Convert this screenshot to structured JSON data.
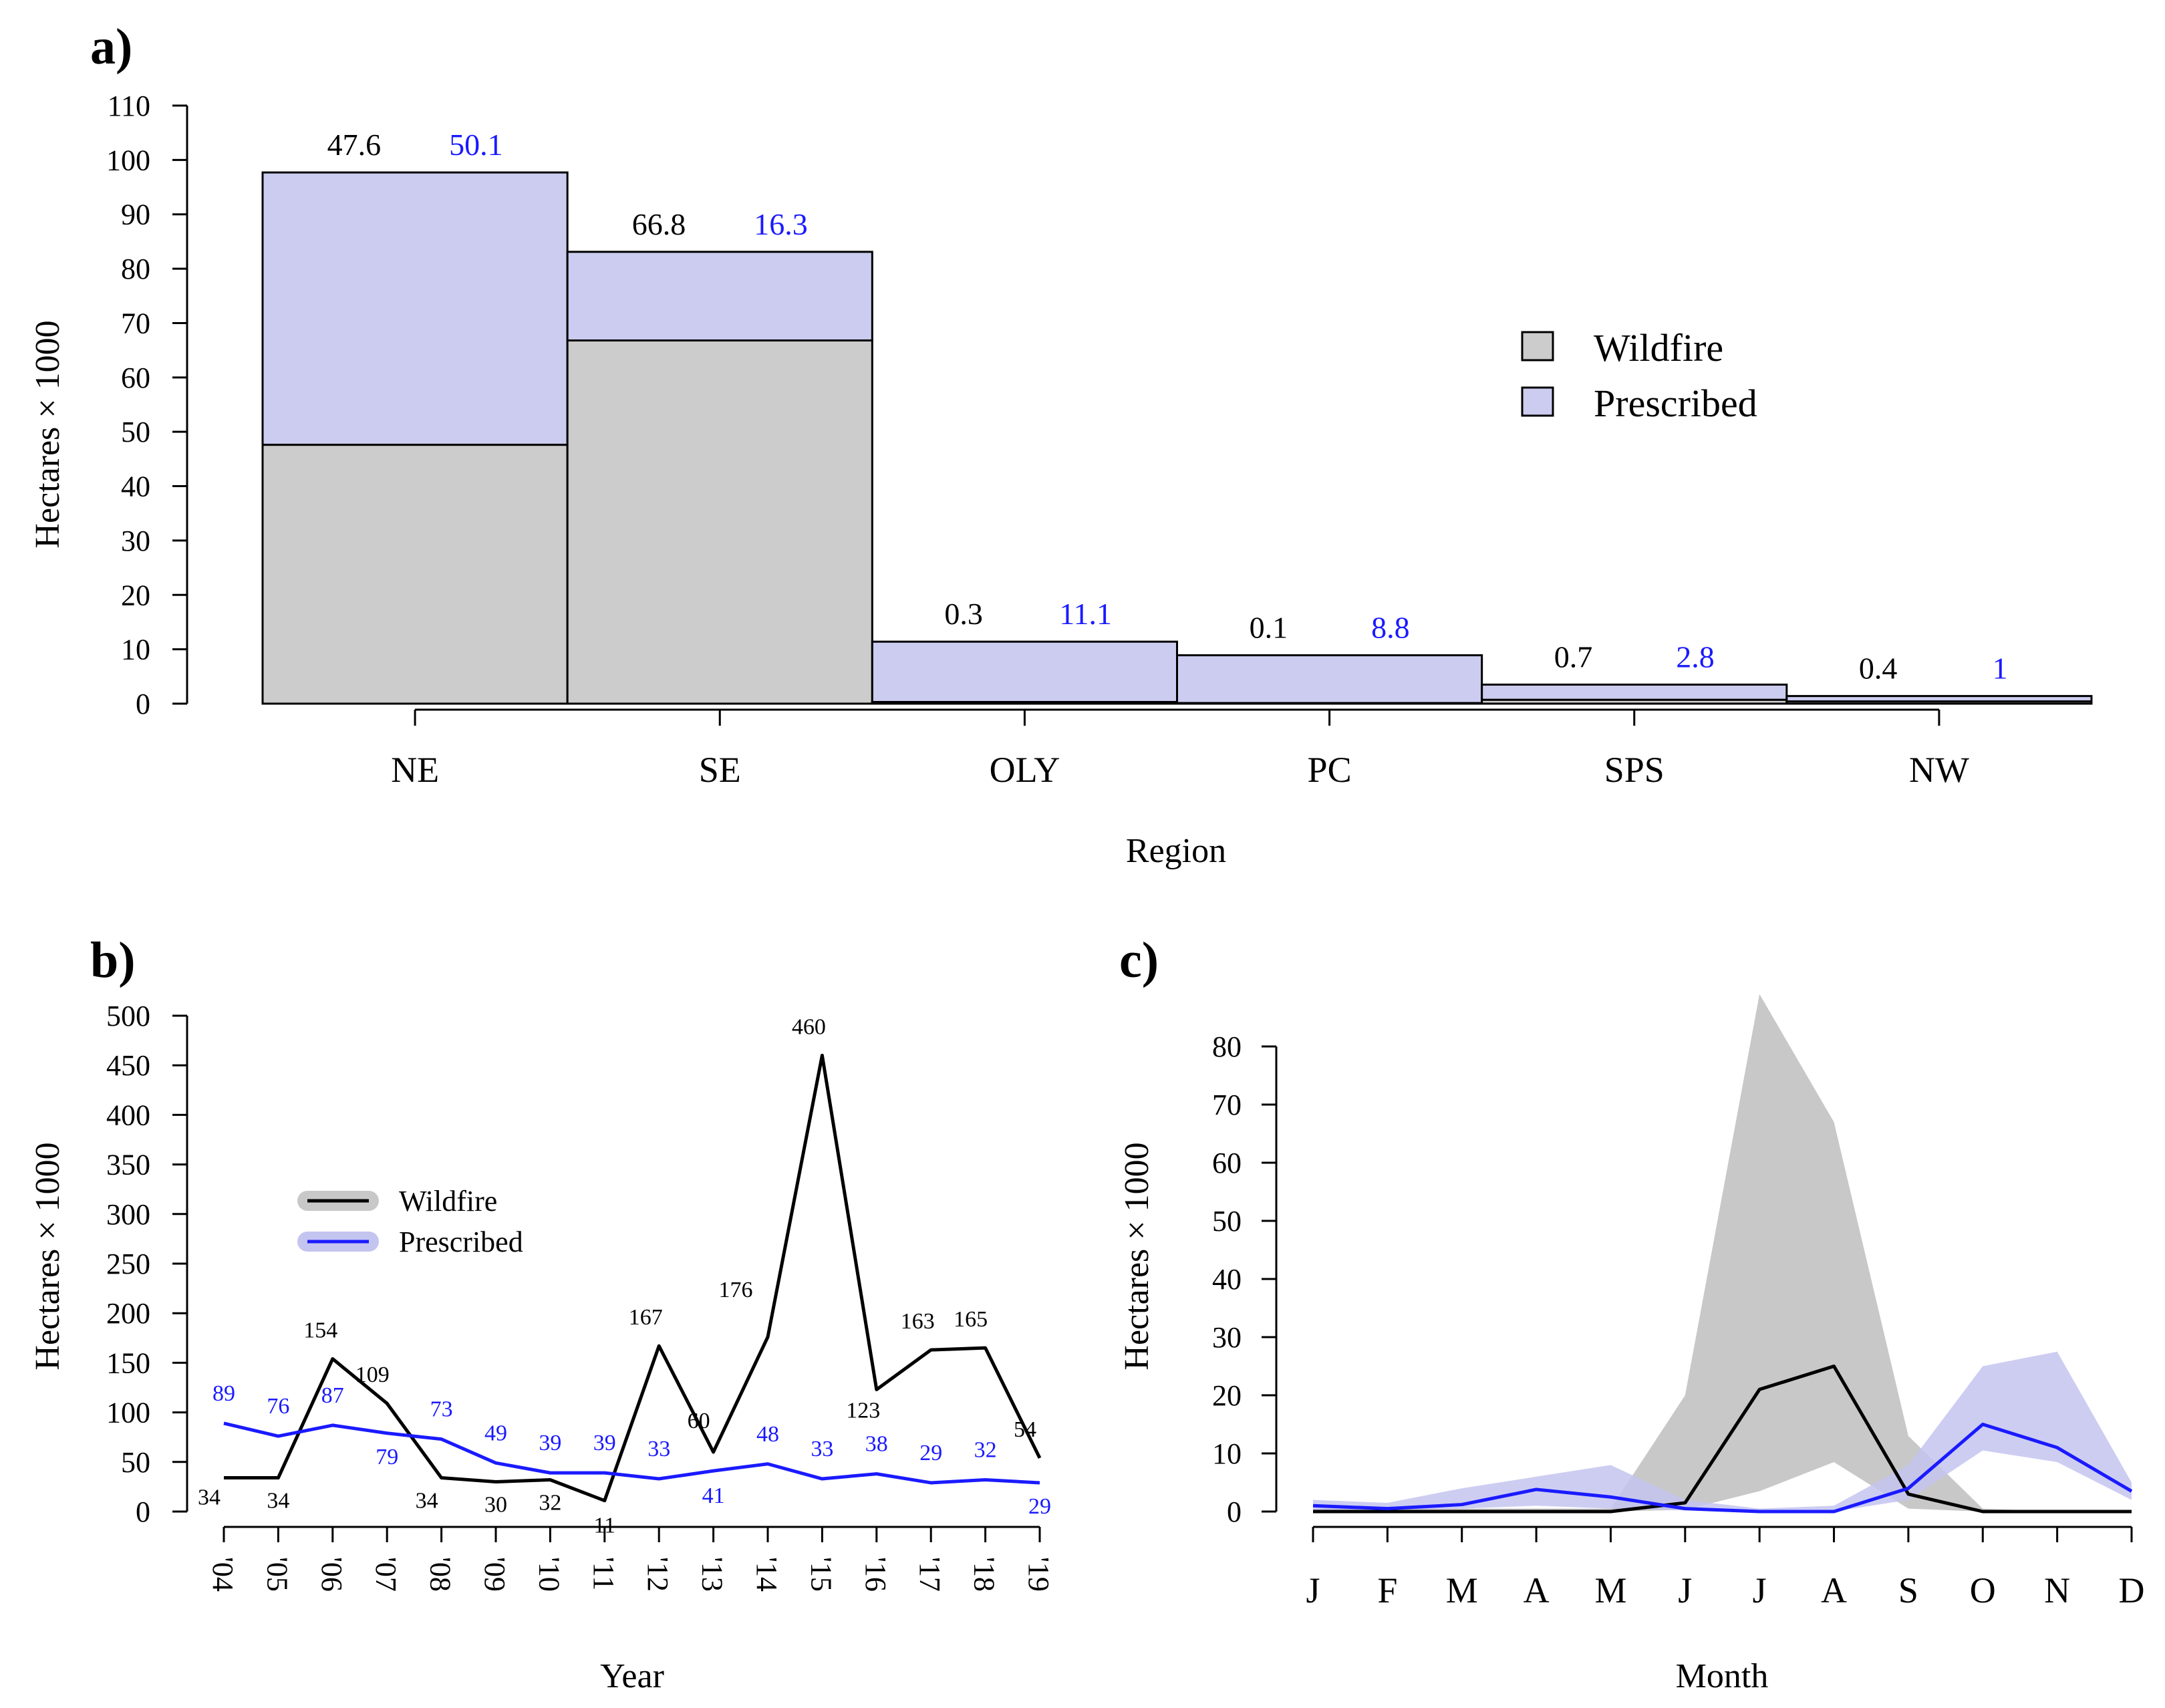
{
  "panels": {
    "a": {
      "label": "a)"
    },
    "b": {
      "label": "b)"
    },
    "c": {
      "label": "c)"
    }
  },
  "colors": {
    "wildfire_fill": "#cccccc",
    "prescribed_fill": "#ccccf0",
    "wildfire_line": "#000000",
    "prescribed_line": "#1a1aff",
    "wildfire_band": "#c8c8c8",
    "prescribed_band": "#c4c4f0"
  },
  "chart_data": [
    {
      "id": "a",
      "type": "bar",
      "stacked": true,
      "variable_width": true,
      "categories": [
        "NE",
        "SE",
        "OLY",
        "PC",
        "SPS",
        "NW"
      ],
      "series": [
        {
          "name": "Wildfire",
          "values": [
            47.6,
            66.8,
            0.3,
            0.1,
            0.7,
            0.4
          ]
        },
        {
          "name": "Prescribed",
          "values": [
            50.1,
            16.3,
            11.1,
            8.8,
            2.8,
            1
          ]
        }
      ],
      "value_labels": {
        "Wildfire": [
          "47.6",
          "66.8",
          "0.3",
          "0.1",
          "0.7",
          "0.4"
        ],
        "Prescribed": [
          "50.1",
          "16.3",
          "11.1",
          "8.8",
          "2.8",
          "1"
        ]
      },
      "xlabel": "Region",
      "ylabel": "Hectares × 1000",
      "ylim": [
        0,
        110
      ],
      "yticks": [
        "0",
        "10",
        "20",
        "30",
        "40",
        "50",
        "60",
        "70",
        "80",
        "90",
        "100",
        "110"
      ],
      "legend": {
        "position": "right",
        "entries": [
          "Wildfire",
          "Prescribed"
        ]
      },
      "grid": false
    },
    {
      "id": "b",
      "type": "line",
      "categories": [
        "'04",
        "'05",
        "'06",
        "'07",
        "'08",
        "'09",
        "'10",
        "'11",
        "'12",
        "'13",
        "'14",
        "'15",
        "'16",
        "'17",
        "'18",
        "'19"
      ],
      "series": [
        {
          "name": "Wildfire",
          "values": [
            34,
            34,
            154,
            109,
            34,
            30,
            32,
            11,
            167,
            60,
            176,
            460,
            123,
            163,
            165,
            54
          ]
        },
        {
          "name": "Prescribed",
          "values": [
            89,
            76,
            87,
            79,
            73,
            49,
            39,
            39,
            33,
            41,
            48,
            33,
            38,
            29,
            32,
            29
          ]
        }
      ],
      "point_labels": {
        "Wildfire": [
          "34",
          "34",
          "154",
          "109",
          "34",
          "30",
          "32",
          "11",
          "167",
          "60",
          "176",
          "460",
          "123",
          "163",
          "165",
          "54"
        ],
        "Prescribed": [
          "89",
          "76",
          "87",
          "79",
          "73",
          "49",
          "39",
          "39",
          "33",
          "41",
          "48",
          "33",
          "38",
          "29",
          "32",
          "29"
        ]
      },
      "xlabel": "Year",
      "ylabel": "Hectares × 1000",
      "ylim": [
        0,
        500
      ],
      "yticks": [
        "0",
        "50",
        "100",
        "150",
        "200",
        "250",
        "300",
        "350",
        "400",
        "450",
        "500"
      ],
      "legend": {
        "position": "upper-left",
        "entries": [
          "Wildfire",
          "Prescribed"
        ]
      },
      "grid": false
    },
    {
      "id": "c",
      "type": "area",
      "categories": [
        "J",
        "F",
        "M",
        "A",
        "M",
        "J",
        "J",
        "A",
        "S",
        "O",
        "N",
        "D"
      ],
      "series": [
        {
          "name": "Wildfire",
          "mean": [
            0,
            0,
            0,
            0,
            0,
            1.5,
            21,
            25,
            3,
            0,
            0,
            0
          ],
          "low": [
            0,
            0,
            0,
            0,
            0,
            0.3,
            3.5,
            8.5,
            0.5,
            0,
            0,
            0
          ],
          "high": [
            0.5,
            0.5,
            0.5,
            0.5,
            0.5,
            20,
            89,
            67,
            13,
            0.5,
            0,
            0
          ]
        },
        {
          "name": "Prescribed",
          "mean": [
            1,
            0.5,
            1.2,
            3.8,
            2.5,
            0.5,
            0,
            0,
            4,
            15,
            11,
            3.5
          ],
          "low": [
            0.3,
            0.2,
            0.5,
            1,
            0.5,
            0.2,
            0,
            0,
            2,
            10.5,
            8.5,
            2
          ],
          "high": [
            2,
            1.5,
            4,
            6,
            8,
            2,
            0.5,
            1,
            8,
            25,
            27.5,
            5
          ]
        }
      ],
      "xlabel": "Month",
      "ylabel": "Hectares × 1000",
      "ylim": [
        0,
        80
      ],
      "yticks": [
        "0",
        "10",
        "20",
        "30",
        "40",
        "50",
        "60",
        "70",
        "80"
      ],
      "grid": false
    }
  ]
}
